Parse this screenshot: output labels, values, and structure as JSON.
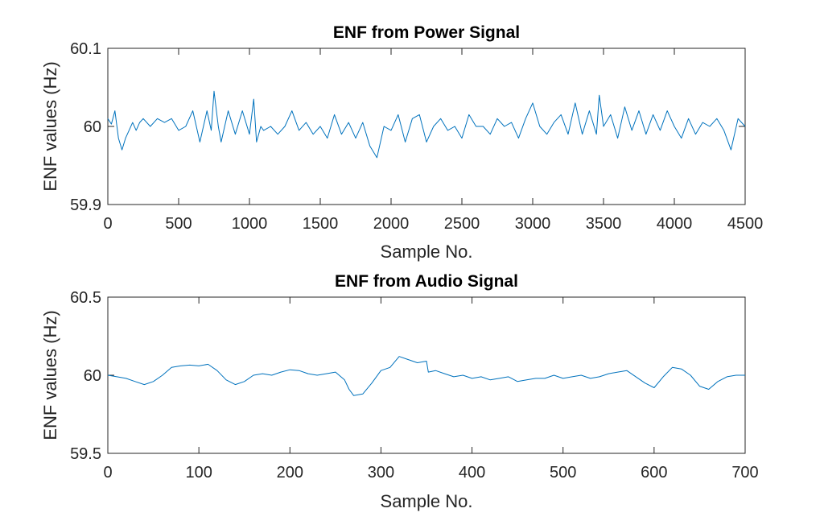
{
  "chart_data": [
    {
      "type": "line",
      "title": "ENF from Power Signal",
      "xlabel": "Sample No.",
      "ylabel": "ENF values (Hz)",
      "xlim": [
        0,
        4500
      ],
      "ylim": [
        59.9,
        60.1
      ],
      "xticks": [
        0,
        500,
        1000,
        1500,
        2000,
        2500,
        3000,
        3500,
        4000,
        4500
      ],
      "yticks": [
        59.9,
        60,
        60.1
      ],
      "xtick_labels": [
        "0",
        "500",
        "1000",
        "1500",
        "2000",
        "2500",
        "3000",
        "3500",
        "4000",
        "4500"
      ],
      "ytick_labels": [
        "59.9",
        "60",
        "60.1"
      ],
      "grid": false,
      "color": "#0072BD",
      "series": [
        {
          "x": [
            0,
            25,
            50,
            75,
            100,
            125,
            150,
            175,
            200,
            225,
            250,
            300,
            350,
            400,
            450,
            500,
            550,
            600,
            650,
            700,
            730,
            750,
            780,
            800,
            850,
            900,
            950,
            1000,
            1030,
            1050,
            1080,
            1100,
            1150,
            1200,
            1250,
            1300,
            1350,
            1400,
            1450,
            1500,
            1550,
            1600,
            1650,
            1700,
            1750,
            1800,
            1850,
            1900,
            1950,
            2000,
            2050,
            2100,
            2150,
            2200,
            2250,
            2300,
            2350,
            2400,
            2450,
            2500,
            2550,
            2600,
            2650,
            2700,
            2750,
            2800,
            2850,
            2900,
            2950,
            3000,
            3050,
            3100,
            3150,
            3200,
            3250,
            3300,
            3350,
            3400,
            3450,
            3470,
            3500,
            3550,
            3600,
            3650,
            3700,
            3750,
            3800,
            3850,
            3900,
            3950,
            4000,
            4050,
            4100,
            4150,
            4200,
            4250,
            4300,
            4350,
            4400,
            4450,
            4500
          ],
          "y": [
            60.01,
            60.003,
            60.02,
            59.985,
            59.97,
            59.985,
            59.995,
            60.005,
            59.995,
            60.005,
            60.01,
            60.0,
            60.01,
            60.005,
            60.01,
            59.995,
            60.0,
            60.02,
            59.98,
            60.02,
            59.995,
            60.045,
            60.0,
            59.98,
            60.02,
            59.99,
            60.02,
            59.99,
            60.035,
            59.98,
            60.0,
            59.995,
            60.0,
            59.99,
            60.0,
            60.02,
            59.995,
            60.005,
            59.99,
            60.0,
            59.985,
            60.015,
            59.99,
            60.005,
            59.985,
            60.005,
            59.975,
            59.96,
            60.0,
            59.995,
            60.015,
            59.98,
            60.01,
            60.015,
            59.98,
            60.0,
            60.01,
            59.995,
            60.0,
            59.985,
            60.015,
            60.0,
            60.0,
            59.99,
            60.01,
            60.0,
            60.005,
            59.985,
            60.01,
            60.03,
            60.0,
            59.99,
            60.005,
            60.015,
            59.99,
            60.03,
            59.99,
            60.02,
            59.99,
            60.04,
            60.0,
            60.015,
            59.985,
            60.025,
            59.995,
            60.02,
            59.99,
            60.015,
            59.995,
            60.02,
            60.0,
            59.985,
            60.01,
            59.99,
            60.005,
            60.0,
            60.01,
            59.995,
            59.97,
            60.01,
            60.0
          ]
        }
      ]
    },
    {
      "type": "line",
      "title": "ENF from Audio Signal",
      "xlabel": "Sample No.",
      "ylabel": "ENF values (Hz)",
      "xlim": [
        0,
        700
      ],
      "ylim": [
        59.5,
        60.5
      ],
      "xticks": [
        0,
        100,
        200,
        300,
        400,
        500,
        600,
        700
      ],
      "yticks": [
        59.5,
        60,
        60.5
      ],
      "xtick_labels": [
        "0",
        "100",
        "200",
        "300",
        "400",
        "500",
        "600",
        "700"
      ],
      "ytick_labels": [
        "59.5",
        "60",
        "60.5"
      ],
      "grid": false,
      "color": "#0072BD",
      "series": [
        {
          "x": [
            0,
            10,
            20,
            30,
            40,
            50,
            60,
            70,
            80,
            90,
            100,
            110,
            120,
            130,
            140,
            150,
            160,
            170,
            180,
            190,
            200,
            210,
            220,
            230,
            240,
            250,
            260,
            265,
            270,
            280,
            290,
            300,
            310,
            320,
            330,
            340,
            350,
            352,
            360,
            370,
            380,
            390,
            400,
            410,
            420,
            430,
            440,
            450,
            460,
            470,
            480,
            490,
            500,
            510,
            520,
            530,
            540,
            550,
            560,
            570,
            580,
            590,
            600,
            610,
            620,
            630,
            640,
            650,
            660,
            670,
            680,
            690,
            700
          ],
          "y": [
            60.0,
            59.99,
            59.98,
            59.96,
            59.94,
            59.96,
            60.0,
            60.05,
            60.06,
            60.065,
            60.06,
            60.07,
            60.03,
            59.97,
            59.94,
            59.96,
            60.0,
            60.01,
            60.0,
            60.02,
            60.035,
            60.03,
            60.01,
            60.0,
            60.01,
            60.02,
            59.97,
            59.91,
            59.87,
            59.88,
            59.95,
            60.03,
            60.05,
            60.12,
            60.1,
            60.08,
            60.09,
            60.02,
            60.03,
            60.01,
            59.99,
            60.0,
            59.98,
            59.99,
            59.97,
            59.98,
            59.99,
            59.96,
            59.97,
            59.98,
            59.98,
            60.0,
            59.98,
            59.99,
            60.0,
            59.98,
            59.99,
            60.01,
            60.02,
            60.03,
            59.99,
            59.95,
            59.92,
            59.99,
            60.05,
            60.04,
            60.0,
            59.93,
            59.91,
            59.96,
            59.99,
            60.0,
            60.0
          ]
        }
      ]
    }
  ]
}
